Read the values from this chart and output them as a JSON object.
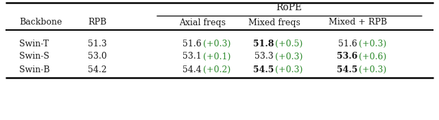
{
  "rope_header": "RoPE",
  "col_headers": [
    "Backbone",
    "RPB",
    "Axial freqs",
    "Mixed freqs",
    "Mixed + RPB"
  ],
  "rows": [
    {
      "backbone": "Swin-T",
      "rpb": "51.3",
      "axial": {
        "val": "51.6",
        "delta": "(+0.3)",
        "bold": false
      },
      "mixed": {
        "val": "51.8",
        "delta": "(+0.5)",
        "bold": true
      },
      "mixed_rpb": {
        "val": "51.6",
        "delta": "(+0.3)",
        "bold": false
      }
    },
    {
      "backbone": "Swin-S",
      "rpb": "53.0",
      "axial": {
        "val": "53.1",
        "delta": "(+0.1)",
        "bold": false
      },
      "mixed": {
        "val": "53.3",
        "delta": "(+0.3)",
        "bold": false
      },
      "mixed_rpb": {
        "val": "53.6",
        "delta": "(+0.6)",
        "bold": true
      }
    },
    {
      "backbone": "Swin-B",
      "rpb": "54.2",
      "axial": {
        "val": "54.4",
        "delta": "(+0.2)",
        "bold": false
      },
      "mixed": {
        "val": "54.5",
        "delta": "(+0.3)",
        "bold": true
      },
      "mixed_rpb": {
        "val": "54.5",
        "delta": "(+0.3)",
        "bold": true
      }
    }
  ],
  "green_color": "#2e8b2e",
  "black_color": "#1a1a1a",
  "bg_color": "#ffffff",
  "line_color": "#000000",
  "fontsize": 9.0,
  "header_fontsize": 9.0,
  "rope_fontsize": 10.0
}
